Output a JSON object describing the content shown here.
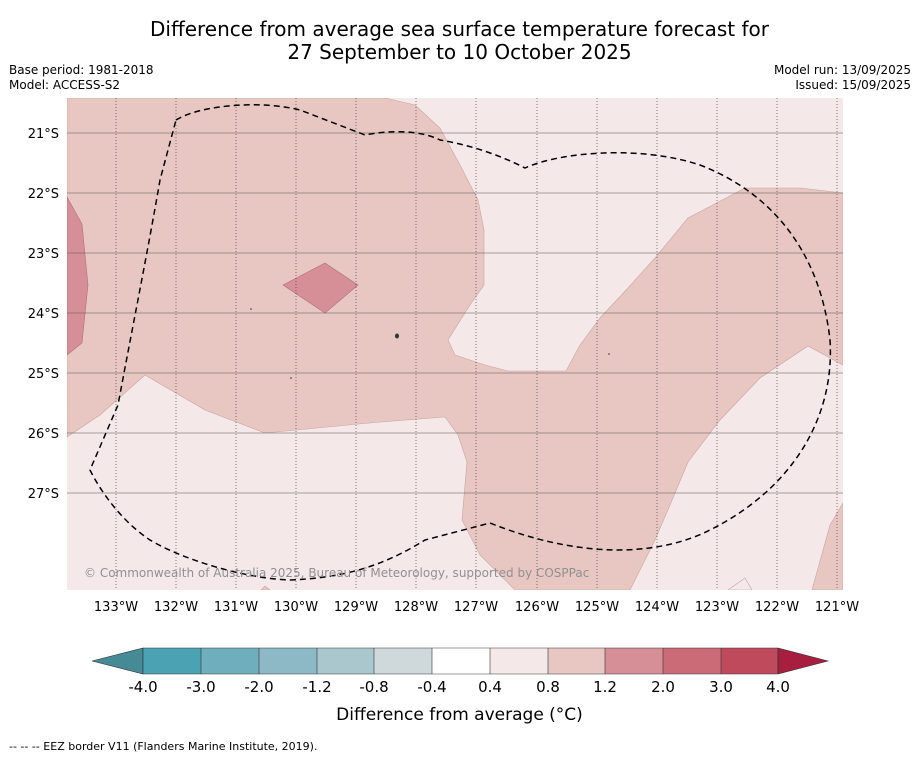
{
  "chart_data": {
    "type": "contour_map",
    "title_line1": "Difference from average sea surface temperature forecast for",
    "title_line2": "27 September to 10 October 2025",
    "base_period": "Base period: 1981-2018",
    "model": "Model: ACCESS-S2",
    "model_run": "Model run: 13/09/2025",
    "issued": "Issued: 15/09/2025",
    "lon_ticks": [
      "133°W",
      "132°W",
      "131°W",
      "130°W",
      "129°W",
      "128°W",
      "127°W",
      "126°W",
      "125°W",
      "124°W",
      "123°W",
      "122°W",
      "121°W"
    ],
    "lat_ticks": [
      "21°S",
      "22°S",
      "23°S",
      "24°S",
      "25°S",
      "26°S",
      "27°S"
    ],
    "copyright": "© Commonwealth of Australia 2025, Bureau of Meteorology, supported by COSPPac",
    "colorbar": {
      "label": "Difference from average (°C)",
      "ticks": [
        "-4.0",
        "-3.0",
        "-2.0",
        "-1.2",
        "-0.8",
        "-0.4",
        "0.4",
        "0.8",
        "1.2",
        "2.0",
        "3.0",
        "4.0"
      ],
      "colors": [
        "#468a96",
        "#4aa2b3",
        "#6eaebd",
        "#8cb9c5",
        "#a9c7cd",
        "#cfd9dc",
        "#ffffff",
        "#f5e8e8",
        "#e8c7c3",
        "#d68f96",
        "#cb6b77",
        "#bf4a5c",
        "#a81e3e"
      ]
    },
    "footer": "--  --  -- EEZ border V11 (Flanders Marine Institute, 2019)."
  }
}
